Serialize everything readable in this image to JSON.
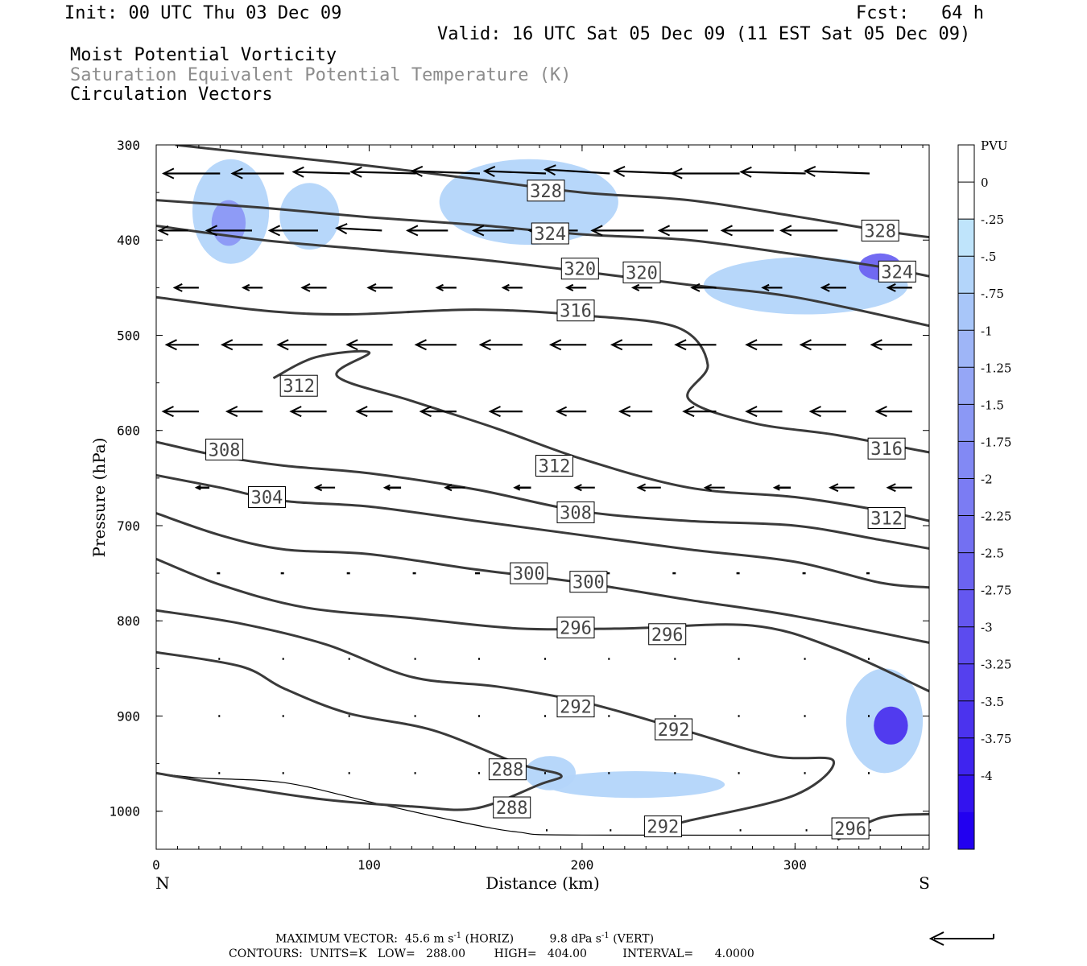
{
  "header": {
    "init": "Init: 00 UTC Thu 03 Dec 09",
    "fcst": "Fcst:   64 h",
    "valid": "Valid: 16 UTC Sat 05 Dec 09 (11 EST Sat 05 Dec 09)",
    "field1": "Moist Potential Vorticity",
    "field2": "Saturation Equivalent Potential Temperature (K)",
    "field3": "Circulation Vectors"
  },
  "footer": {
    "max_vector_prefix": "MAXIMUM VECTOR:  45.6 m s",
    "horiz_suffix": " (HORIZ)",
    "vert_prefix": "9.8 dPa s",
    "vert_suffix": " (VERT)",
    "exponent": "-1",
    "contours": "CONTOURS:  UNITS=K   LOW=   288.00        HIGH=   404.00          INTERVAL=      4.0000"
  },
  "colors": {
    "contour": "#3a3a3a",
    "fill_light": "#bfe4fb",
    "fill_mid": "#9eb5f7",
    "fill_dark": "#7b84f2",
    "fill_deep": "#4f52ee"
  },
  "chart_data": {
    "type": "cross-section",
    "xlabel": "Distance (km)",
    "ylabel": "Pressure (hPa)",
    "xlim": [
      0,
      363
    ],
    "ylim": [
      1040,
      300
    ],
    "x_ticks": [
      0,
      100,
      200,
      300
    ],
    "y_ticks": [
      300,
      400,
      500,
      600,
      700,
      800,
      900,
      1000
    ],
    "x_end_labels": [
      "N",
      "S"
    ],
    "colorbar": {
      "title": "PVU",
      "levels": [
        0,
        -0.25,
        -0.5,
        -0.75,
        -1,
        -1.25,
        -1.5,
        -1.75,
        -2,
        -2.25,
        -2.5,
        -2.75,
        -3,
        -3.25,
        -3.5,
        -3.75,
        -4
      ],
      "labels": [
        "0",
        "-.25",
        "-.5",
        "-.75",
        "-1",
        "-1.25",
        "-1.5",
        "-1.75",
        "-2",
        "-2.25",
        "-2.5",
        "-2.75",
        "-3",
        "-3.25",
        "-3.5",
        "-3.75",
        "-4"
      ],
      "colors": [
        "#ffffff",
        "#ffffff",
        "#bfe4fb",
        "#b3d5fa",
        "#a8c6f9",
        "#9eb5f7",
        "#95a6f6",
        "#8b98f5",
        "#8289f4",
        "#7b7cf3",
        "#7370f2",
        "#6b63f1",
        "#6457f0",
        "#5c4bef",
        "#5540ee",
        "#4b33ee",
        "#3f24ef",
        "#3313ef",
        "#2200f0"
      ]
    },
    "contours": [
      {
        "value": "328",
        "labels": [
          [
            183,
            348
          ],
          [
            340,
            390
          ]
        ],
        "points": [
          [
            9,
            300
          ],
          [
            50,
            310
          ],
          [
            100,
            322
          ],
          [
            150,
            336
          ],
          [
            200,
            350
          ],
          [
            250,
            358
          ],
          [
            300,
            375
          ],
          [
            340,
            390
          ],
          [
            363,
            397
          ]
        ]
      },
      {
        "value": "324",
        "labels": [
          [
            185,
            393
          ],
          [
            348,
            433
          ]
        ],
        "points": [
          [
            0,
            358
          ],
          [
            50,
            366
          ],
          [
            100,
            376
          ],
          [
            150,
            384
          ],
          [
            200,
            394
          ],
          [
            250,
            400
          ],
          [
            300,
            415
          ],
          [
            340,
            428
          ],
          [
            363,
            438
          ]
        ]
      },
      {
        "value": "320",
        "labels": [
          [
            199,
            430
          ],
          [
            228,
            434
          ]
        ],
        "points": [
          [
            0,
            385
          ],
          [
            50,
            400
          ],
          [
            100,
            410
          ],
          [
            150,
            420
          ],
          [
            200,
            433
          ],
          [
            250,
            447
          ],
          [
            300,
            460
          ],
          [
            363,
            490
          ]
        ]
      },
      {
        "value": "316",
        "labels": [
          [
            197,
            474
          ],
          [
            343,
            619
          ]
        ],
        "points": [
          [
            0,
            460
          ],
          [
            50,
            474
          ],
          [
            90,
            478
          ],
          [
            150,
            473
          ],
          [
            200,
            479
          ],
          [
            245,
            492
          ],
          [
            259,
            531
          ],
          [
            250,
            567
          ],
          [
            280,
            592
          ],
          [
            320,
            605
          ],
          [
            363,
            623
          ]
        ]
      },
      {
        "value": "312",
        "labels": [
          [
            67,
            553
          ],
          [
            187,
            637
          ],
          [
            343,
            692
          ]
        ],
        "points": [
          [
            55,
            545
          ],
          [
            75,
            523
          ],
          [
            100,
            518
          ],
          [
            85,
            543
          ],
          [
            120,
            569
          ],
          [
            160,
            598
          ],
          [
            200,
            630
          ],
          [
            250,
            660
          ],
          [
            300,
            670
          ],
          [
            340,
            684
          ],
          [
            363,
            695
          ]
        ]
      },
      {
        "value": "308",
        "labels": [
          [
            32,
            620
          ],
          [
            197,
            686
          ]
        ],
        "points": [
          [
            0,
            612
          ],
          [
            30,
            627
          ],
          [
            60,
            637
          ],
          [
            100,
            645
          ],
          [
            150,
            662
          ],
          [
            200,
            685
          ],
          [
            250,
            695
          ],
          [
            300,
            700
          ],
          [
            340,
            715
          ],
          [
            363,
            724
          ]
        ]
      },
      {
        "value": "304",
        "labels": [
          [
            52,
            670
          ]
        ],
        "points": [
          [
            0,
            647
          ],
          [
            30,
            660
          ],
          [
            60,
            674
          ],
          [
            100,
            680
          ],
          [
            150,
            695
          ],
          [
            200,
            710
          ],
          [
            250,
            725
          ],
          [
            300,
            738
          ],
          [
            340,
            760
          ],
          [
            363,
            765
          ]
        ]
      },
      {
        "value": "300",
        "labels": [
          [
            175,
            750
          ],
          [
            203,
            759
          ]
        ],
        "points": [
          [
            0,
            687
          ],
          [
            30,
            710
          ],
          [
            60,
            725
          ],
          [
            100,
            730
          ],
          [
            150,
            746
          ],
          [
            200,
            760
          ],
          [
            250,
            778
          ],
          [
            300,
            795
          ],
          [
            363,
            823
          ]
        ]
      },
      {
        "value": "296",
        "labels": [
          [
            197,
            807
          ],
          [
            240,
            814
          ]
        ],
        "points": [
          [
            0,
            735
          ],
          [
            30,
            762
          ],
          [
            70,
            786
          ],
          [
            120,
            797
          ],
          [
            170,
            808
          ],
          [
            220,
            808
          ],
          [
            280,
            805
          ],
          [
            320,
            830
          ],
          [
            363,
            874
          ]
        ]
      },
      {
        "value": "292",
        "labels": [
          [
            197,
            890
          ],
          [
            243,
            914
          ],
          [
            238,
            1016
          ]
        ],
        "points": [
          [
            0,
            789
          ],
          [
            40,
            803
          ],
          [
            80,
            825
          ],
          [
            120,
            859
          ],
          [
            160,
            869
          ],
          [
            200,
            885
          ],
          [
            245,
            913
          ],
          [
            290,
            942
          ],
          [
            318,
            947
          ],
          [
            300,
            983
          ],
          [
            250,
            1010
          ],
          [
            240,
            1016
          ]
        ]
      },
      {
        "value": "288",
        "labels": [
          [
            165,
            956
          ],
          [
            167,
            996
          ]
        ],
        "points": [
          [
            0,
            833
          ],
          [
            40,
            848
          ],
          [
            60,
            871
          ],
          [
            90,
            897
          ],
          [
            130,
            915
          ],
          [
            170,
            950
          ],
          [
            190,
            962
          ],
          [
            180,
            972
          ],
          [
            150,
            997
          ],
          [
            120,
            995
          ],
          [
            80,
            988
          ],
          [
            40,
            975
          ],
          [
            0,
            960
          ]
        ]
      },
      {
        "value": "296",
        "labels": [
          [
            326,
            1018
          ]
        ],
        "points": [
          [
            320,
            1030
          ],
          [
            340,
            1007
          ],
          [
            363,
            1003
          ]
        ]
      }
    ],
    "pv_fills": [
      {
        "level": -0.5,
        "center": [
          35,
          370
        ],
        "rx": 18,
        "ry": 55
      },
      {
        "level": -1.5,
        "center": [
          34,
          382
        ],
        "rx": 8,
        "ry": 24
      },
      {
        "level": -0.5,
        "center": [
          72,
          375
        ],
        "rx": 14,
        "ry": 35
      },
      {
        "level": -0.5,
        "center": [
          175,
          360
        ],
        "rx": 42,
        "ry": 45
      },
      {
        "level": -0.5,
        "center": [
          305,
          448
        ],
        "rx": 48,
        "ry": 30
      },
      {
        "level": -2.5,
        "center": [
          340,
          428
        ],
        "rx": 10,
        "ry": 14
      },
      {
        "level": -0.5,
        "center": [
          342,
          905
        ],
        "rx": 18,
        "ry": 55
      },
      {
        "level": -3.5,
        "center": [
          345,
          910
        ],
        "rx": 8,
        "ry": 20
      },
      {
        "level": -0.5,
        "center": [
          225,
          972
        ],
        "rx": 42,
        "ry": 14
      },
      {
        "level": -0.5,
        "center": [
          185,
          960
        ],
        "rx": 12,
        "ry": 18
      }
    ],
    "vectors": [
      {
        "p": 330,
        "x": [
          0,
          30,
          60,
          91,
          122,
          152,
          183,
          213,
          244,
          274,
          305,
          335
        ],
        "u": [
          -40,
          -35,
          -32,
          -35,
          -40,
          -42,
          -38,
          -40,
          -38,
          -42,
          -40,
          -40
        ],
        "w": [
          0,
          0,
          0,
          2,
          2,
          3,
          3,
          5,
          3,
          0,
          2,
          3
        ]
      },
      {
        "p": 390,
        "x": [
          15,
          45,
          76,
          106,
          137,
          168,
          198,
          229,
          259,
          290,
          320
        ],
        "u": [
          -18,
          -28,
          -30,
          -28,
          -25,
          -25,
          -30,
          -32,
          -30,
          -32,
          -35
        ],
        "w": [
          0,
          0,
          0,
          3,
          0,
          0,
          0,
          0,
          0,
          0,
          0
        ]
      },
      {
        "p": 450,
        "x": [
          20,
          50,
          80,
          111,
          141,
          172,
          202,
          233,
          263,
          294,
          324,
          355
        ],
        "u": [
          -15,
          -12,
          -15,
          -15,
          -12,
          -12,
          -12,
          -12,
          -15,
          -12,
          -15,
          -15
        ],
        "w": [
          0,
          0,
          0,
          0,
          0,
          0,
          0,
          0,
          0,
          0,
          0,
          0
        ]
      },
      {
        "p": 510,
        "x": [
          20,
          50,
          80,
          111,
          141,
          172,
          202,
          233,
          263,
          294,
          324,
          355
        ],
        "u": [
          -20,
          -25,
          -30,
          -28,
          -25,
          -26,
          -22,
          -25,
          -25,
          -22,
          -28,
          -25
        ],
        "w": [
          0,
          0,
          0,
          0,
          0,
          0,
          0,
          0,
          0,
          0,
          0,
          0
        ]
      },
      {
        "p": 580,
        "x": [
          20,
          50,
          80,
          111,
          141,
          172,
          202,
          233,
          263,
          294,
          324,
          355
        ],
        "u": [
          -22,
          -22,
          -22,
          -22,
          -22,
          -20,
          -18,
          -20,
          -20,
          -22,
          -22,
          -22
        ],
        "w": [
          0,
          0,
          0,
          0,
          0,
          0,
          0,
          0,
          0,
          0,
          0,
          0
        ]
      },
      {
        "p": 660,
        "x": [
          25,
          84,
          115,
          145,
          176,
          206,
          237,
          267,
          298,
          328,
          355
        ],
        "u": [
          -8,
          -12,
          -10,
          -12,
          -10,
          -12,
          -14,
          -12,
          -10,
          -15,
          -15
        ],
        "w": [
          0,
          0,
          0,
          0,
          0,
          0,
          0,
          0,
          0,
          0,
          0
        ]
      },
      {
        "p": 750,
        "x": [
          30,
          60,
          91,
          122,
          152,
          183,
          213,
          244,
          274,
          305,
          335
        ],
        "u": [
          -2,
          -2,
          -2,
          -2,
          -3,
          -3,
          -2,
          -2,
          -2,
          -2,
          -2
        ],
        "w": [
          0,
          0,
          0,
          0,
          0,
          0,
          0,
          0,
          0,
          0,
          0
        ]
      },
      {
        "p": 840,
        "x": [
          30,
          60,
          91,
          122,
          152,
          183,
          213,
          244,
          274,
          305,
          335
        ],
        "u": [
          -1,
          -1,
          -1,
          -1,
          -1,
          -1,
          -1,
          -1,
          -1,
          -1,
          -1
        ],
        "w": [
          0,
          0,
          0,
          0,
          0,
          0,
          0,
          0,
          0,
          0,
          0
        ]
      },
      {
        "p": 900,
        "x": [
          30,
          60,
          91,
          122,
          152,
          183,
          213,
          244,
          274,
          305,
          335
        ],
        "u": [
          -1,
          -1,
          -1,
          -1,
          -1,
          -1,
          -1,
          -1,
          -1,
          -1,
          -1
        ],
        "w": [
          0,
          0,
          0,
          0,
          0,
          0,
          0,
          0,
          0,
          0,
          0
        ]
      },
      {
        "p": 960,
        "x": [
          30,
          60,
          91,
          122,
          152,
          183,
          213,
          244,
          274,
          305,
          335
        ],
        "u": [
          -1,
          -1,
          -1,
          -1,
          -1,
          -1,
          -1,
          -1,
          -1,
          -1,
          -1
        ],
        "w": [
          0,
          0,
          0,
          0,
          0,
          0,
          0,
          0,
          0,
          0,
          0
        ]
      },
      {
        "p": 1020,
        "x": [
          183,
          213,
          244,
          274,
          305,
          335
        ],
        "u": [
          1,
          1,
          1,
          1,
          1,
          1
        ],
        "w": [
          0,
          0,
          0,
          0,
          0,
          0
        ]
      }
    ],
    "terrain": [
      [
        0,
        960
      ],
      [
        20,
        965
      ],
      [
        60,
        970
      ],
      [
        100,
        990
      ],
      [
        140,
        1010
      ],
      [
        170,
        1022
      ],
      [
        200,
        1025
      ],
      [
        363,
        1025
      ]
    ]
  }
}
